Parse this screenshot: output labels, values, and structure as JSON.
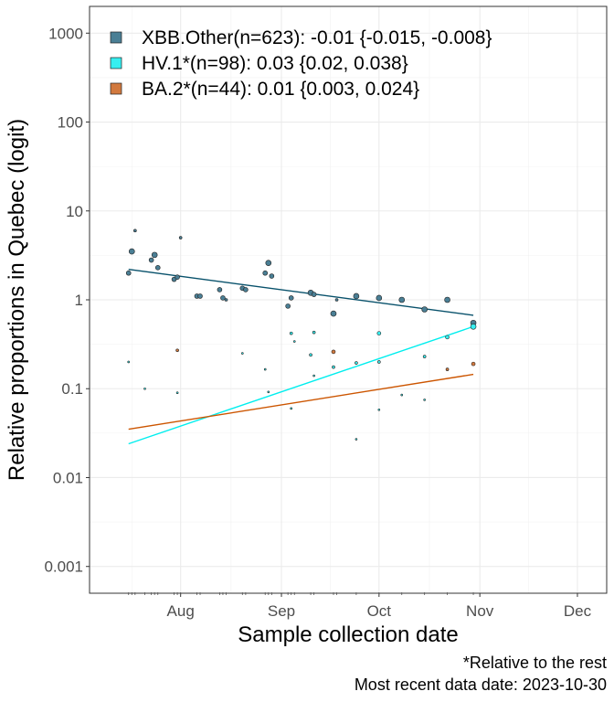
{
  "chart_data": {
    "type": "scatter",
    "title": "",
    "xlabel": "Sample collection date",
    "ylabel": "Relative proportions in Quebec (logit)",
    "y_scale": "log",
    "ylim": [
      0.0005,
      2000
    ],
    "xlim": [
      "2023-07-04",
      "2023-12-10"
    ],
    "x_ticks": [
      {
        "date": "2023-08-01",
        "label": "Aug"
      },
      {
        "date": "2023-09-01",
        "label": "Sep"
      },
      {
        "date": "2023-10-01",
        "label": "Oct"
      },
      {
        "date": "2023-11-01",
        "label": "Nov"
      },
      {
        "date": "2023-12-01",
        "label": "Dec"
      }
    ],
    "y_ticks": [
      {
        "value": 0.001,
        "label": "0.001"
      },
      {
        "value": 0.01,
        "label": "0.01"
      },
      {
        "value": 0.1,
        "label": "0.1"
      },
      {
        "value": 1,
        "label": "1"
      },
      {
        "value": 10,
        "label": "10"
      },
      {
        "value": 100,
        "label": "100"
      },
      {
        "value": 1000,
        "label": "1000"
      }
    ],
    "grid": true,
    "legend_position": "top-left",
    "series": [
      {
        "name": "XBB.Other(n=623): -0.01 {-0.015, -0.008}",
        "color": "#08516b",
        "point_fill": "#4a7f95",
        "trend": [
          {
            "x": "2023-07-16",
            "y": 2.2
          },
          {
            "x": "2023-10-30",
            "y": 0.67
          }
        ],
        "points": [
          {
            "x": "2023-07-16",
            "y": 2.0,
            "s": 2.5
          },
          {
            "x": "2023-07-17",
            "y": 3.5,
            "s": 3
          },
          {
            "x": "2023-07-18",
            "y": 6.0,
            "s": 1.5
          },
          {
            "x": "2023-07-23",
            "y": 2.8,
            "s": 2.5
          },
          {
            "x": "2023-07-24",
            "y": 3.2,
            "s": 3
          },
          {
            "x": "2023-07-25",
            "y": 2.3,
            "s": 2.5
          },
          {
            "x": "2023-07-30",
            "y": 1.7,
            "s": 2.5
          },
          {
            "x": "2023-07-31",
            "y": 1.8,
            "s": 2.5
          },
          {
            "x": "2023-08-01",
            "y": 5.0,
            "s": 1.5
          },
          {
            "x": "2023-08-06",
            "y": 1.1,
            "s": 2.5
          },
          {
            "x": "2023-08-07",
            "y": 1.1,
            "s": 2.5
          },
          {
            "x": "2023-08-13",
            "y": 1.3,
            "s": 2.5
          },
          {
            "x": "2023-08-14",
            "y": 1.05,
            "s": 2.5
          },
          {
            "x": "2023-08-15",
            "y": 1.0,
            "s": 1.5
          },
          {
            "x": "2023-08-20",
            "y": 1.35,
            "s": 2.5
          },
          {
            "x": "2023-08-21",
            "y": 1.3,
            "s": 2.5
          },
          {
            "x": "2023-08-27",
            "y": 2.0,
            "s": 2.5
          },
          {
            "x": "2023-08-28",
            "y": 2.6,
            "s": 3
          },
          {
            "x": "2023-08-29",
            "y": 1.85,
            "s": 2.5
          },
          {
            "x": "2023-09-03",
            "y": 0.85,
            "s": 2.5
          },
          {
            "x": "2023-09-04",
            "y": 1.05,
            "s": 2.5
          },
          {
            "x": "2023-09-10",
            "y": 1.2,
            "s": 3
          },
          {
            "x": "2023-09-11",
            "y": 1.15,
            "s": 2.5
          },
          {
            "x": "2023-09-17",
            "y": 0.7,
            "s": 3
          },
          {
            "x": "2023-09-18",
            "y": 1.0,
            "s": 1.5
          },
          {
            "x": "2023-09-24",
            "y": 1.1,
            "s": 3
          },
          {
            "x": "2023-10-01",
            "y": 1.05,
            "s": 3
          },
          {
            "x": "2023-10-08",
            "y": 1.0,
            "s": 3
          },
          {
            "x": "2023-10-15",
            "y": 0.78,
            "s": 3
          },
          {
            "x": "2023-10-22",
            "y": 1.0,
            "s": 3
          },
          {
            "x": "2023-10-30",
            "y": 0.55,
            "s": 3
          }
        ]
      },
      {
        "name": "HV.1*(n=98): 0.03 {0.02, 0.038}",
        "color": "#00eeee",
        "point_fill": "#36eff0",
        "trend": [
          {
            "x": "2023-07-16",
            "y": 0.024
          },
          {
            "x": "2023-10-30",
            "y": 0.5
          }
        ],
        "points": [
          {
            "x": "2023-07-16",
            "y": 0.2,
            "s": 1
          },
          {
            "x": "2023-07-21",
            "y": 0.1,
            "s": 1
          },
          {
            "x": "2023-07-31",
            "y": 0.09,
            "s": 1
          },
          {
            "x": "2023-08-20",
            "y": 0.25,
            "s": 1
          },
          {
            "x": "2023-08-27",
            "y": 0.165,
            "s": 1
          },
          {
            "x": "2023-08-28",
            "y": 0.092,
            "s": 1
          },
          {
            "x": "2023-09-04",
            "y": 0.06,
            "s": 1
          },
          {
            "x": "2023-09-04",
            "y": 0.42,
            "s": 1.5
          },
          {
            "x": "2023-09-05",
            "y": 0.34,
            "s": 1
          },
          {
            "x": "2023-09-10",
            "y": 0.24,
            "s": 1.5
          },
          {
            "x": "2023-09-11",
            "y": 0.14,
            "s": 1
          },
          {
            "x": "2023-09-11",
            "y": 0.43,
            "s": 1.5
          },
          {
            "x": "2023-09-17",
            "y": 0.175,
            "s": 1.5
          },
          {
            "x": "2023-09-24",
            "y": 0.027,
            "s": 1
          },
          {
            "x": "2023-09-24",
            "y": 0.195,
            "s": 1.5
          },
          {
            "x": "2023-10-01",
            "y": 0.058,
            "s": 1
          },
          {
            "x": "2023-10-01",
            "y": 0.2,
            "s": 1.5
          },
          {
            "x": "2023-10-01",
            "y": 0.42,
            "s": 2
          },
          {
            "x": "2023-10-08",
            "y": 0.085,
            "s": 1
          },
          {
            "x": "2023-10-15",
            "y": 0.075,
            "s": 1
          },
          {
            "x": "2023-10-15",
            "y": 0.23,
            "s": 1.5
          },
          {
            "x": "2023-10-22",
            "y": 0.38,
            "s": 2
          },
          {
            "x": "2023-10-30",
            "y": 0.5,
            "s": 3
          }
        ]
      },
      {
        "name": "BA.2*(n=44): 0.01 {0.003, 0.024}",
        "color": "#cc5500",
        "point_fill": "#d2793e",
        "trend": [
          {
            "x": "2023-07-16",
            "y": 0.035
          },
          {
            "x": "2023-10-30",
            "y": 0.145
          }
        ],
        "points": [
          {
            "x": "2023-07-31",
            "y": 0.27,
            "s": 1.5
          },
          {
            "x": "2023-09-17",
            "y": 0.26,
            "s": 2
          },
          {
            "x": "2023-10-22",
            "y": 0.165,
            "s": 1.5
          },
          {
            "x": "2023-10-30",
            "y": 0.19,
            "s": 2
          }
        ]
      }
    ]
  },
  "caption": {
    "line1": "*Relative to the rest",
    "line2": "Most recent data date: 2023-10-30"
  }
}
